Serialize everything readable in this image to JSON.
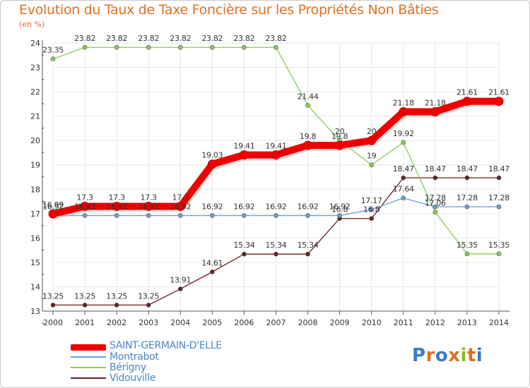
{
  "chart_data": {
    "type": "line",
    "title": "Evolution du Taux de Taxe Foncière sur les Propriétés Non Bâties",
    "unit_label": "(en %)",
    "x": [
      "2000",
      "2001",
      "2002",
      "2003",
      "2004",
      "2005",
      "2006",
      "2007",
      "2008",
      "2009",
      "2010",
      "2011",
      "2012",
      "2013",
      "2014"
    ],
    "ylim": [
      13,
      24
    ],
    "yticks": [
      "13",
      "14",
      "15",
      "16",
      "17",
      "18",
      "19",
      "20",
      "21",
      "22",
      "23",
      "24"
    ],
    "series": [
      {
        "name": "SAINT-GERMAIN-D'ELLE",
        "color": "#ee0000",
        "values": [
          16.99,
          17.3,
          17.3,
          17.3,
          17.3,
          19.03,
          19.41,
          19.41,
          19.8,
          19.8,
          20,
          21.18,
          21.18,
          21.61,
          21.61
        ],
        "labels": [
          "16.99",
          "17.3",
          "17.3",
          "17.3",
          "17.3",
          "19.03",
          "19.41",
          "19.41",
          "19.8",
          "19.8",
          "20",
          "21.18",
          "21.18",
          "21.61",
          "21.61"
        ]
      },
      {
        "name": "Montrabot",
        "color": "#6a9fd4",
        "values": [
          16.92,
          16.92,
          16.92,
          16.92,
          16.92,
          16.92,
          16.92,
          16.92,
          16.92,
          16.92,
          17.17,
          17.64,
          17.28,
          17.28,
          17.28
        ],
        "labels": [
          "16.92",
          "16.92",
          "16.92",
          "16.92",
          "16.92",
          "16.92",
          "16.92",
          "16.92",
          "16.92",
          "16.92",
          "17.17",
          "17.64",
          "17.28",
          "17.28",
          "17.28"
        ]
      },
      {
        "name": "Bérigny",
        "color": "#88cc55",
        "values": [
          23.35,
          23.82,
          23.82,
          23.82,
          23.82,
          23.82,
          23.82,
          23.82,
          21.44,
          20,
          19,
          19.92,
          17.06,
          15.35,
          15.35
        ],
        "labels": [
          "23.35",
          "23.82",
          "23.82",
          "23.82",
          "23.82",
          "23.82",
          "23.82",
          "23.82",
          "21.44",
          "20",
          "19",
          "19.92",
          "17.06",
          "15.35",
          "15.35"
        ]
      },
      {
        "name": "Vidouville",
        "color": "#6b1f1f",
        "values": [
          13.25,
          13.25,
          13.25,
          13.25,
          13.91,
          14.61,
          15.34,
          15.34,
          15.34,
          16.8,
          16.8,
          18.47,
          18.47,
          18.47,
          18.47
        ],
        "labels": [
          "13.25",
          "13.25",
          "13.25",
          "13.25",
          "13.91",
          "14.61",
          "15.34",
          "15.34",
          "15.34",
          "16.8",
          "16.8",
          "18.47",
          "18.47",
          "18.47",
          "18.47"
        ]
      }
    ]
  },
  "legend": {
    "items": [
      "SAINT-GERMAIN-D'ELLE",
      "Montrabot",
      "Bérigny",
      "Vidouville"
    ]
  },
  "logo": {
    "text": "Proxiti"
  }
}
